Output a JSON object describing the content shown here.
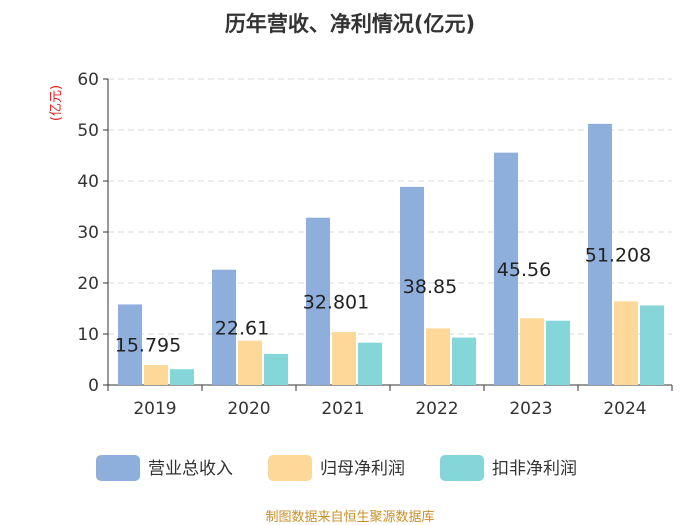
{
  "chart_data": {
    "type": "bar",
    "title": "历年营收、净利情况(亿元)",
    "ylabel": "(亿元)",
    "xlabel": "",
    "ylim": [
      0,
      60
    ],
    "yticks": [
      0,
      10,
      20,
      30,
      40,
      50,
      60
    ],
    "grid": true,
    "legend_position": "bottom",
    "categories": [
      "2019",
      "2020",
      "2021",
      "2022",
      "2023",
      "2024"
    ],
    "series": [
      {
        "name": "营业总收入",
        "color": "#8eaedb",
        "values": [
          15.795,
          22.61,
          32.801,
          38.85,
          45.56,
          51.208
        ],
        "labels": [
          "15.795",
          "22.61",
          "32.801",
          "38.85",
          "45.56",
          "51.208"
        ]
      },
      {
        "name": "归母净利润",
        "color": "#fdd899",
        "values": [
          3.9,
          8.7,
          10.4,
          11.1,
          13.1,
          16.4
        ]
      },
      {
        "name": "扣非净利润",
        "color": "#85d6d8",
        "values": [
          3.1,
          6.1,
          8.3,
          9.3,
          12.6,
          15.6
        ]
      }
    ]
  },
  "footer": {
    "source": "制图数据来自恒生聚源数据库"
  }
}
